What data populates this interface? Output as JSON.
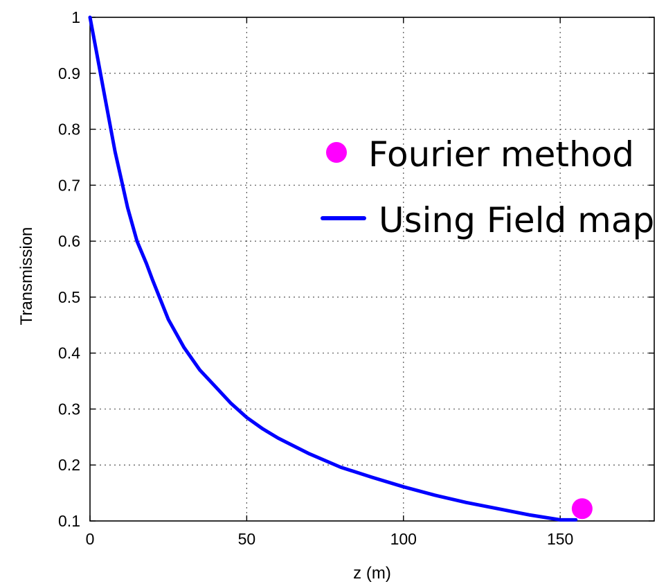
{
  "chart_data": {
    "type": "line",
    "title": "",
    "xlabel": "z (m)",
    "ylabel": "Transmission",
    "xlim": [
      0,
      180
    ],
    "ylim": [
      0.1,
      1
    ],
    "xticks": [
      0,
      50,
      100,
      150
    ],
    "xtick_labels": [
      "0",
      "50",
      "100",
      "150"
    ],
    "yticks": [
      0.1,
      0.2,
      0.3,
      0.4,
      0.5,
      0.6,
      0.7,
      0.8,
      0.9,
      1
    ],
    "ytick_labels": [
      "0.1",
      "0.2",
      "0.3",
      "0.4",
      "0.5",
      "0.6",
      "0.7",
      "0.8",
      "0.9",
      "1"
    ],
    "grid": true,
    "legend_position": "top-right",
    "series": [
      {
        "name": "Using Field map",
        "kind": "line",
        "color": "#0000ff",
        "x": [
          0,
          2,
          5,
          8,
          10,
          12,
          15,
          18,
          20,
          25,
          30,
          35,
          40,
          45,
          50,
          55,
          60,
          70,
          80,
          90,
          100,
          110,
          120,
          130,
          140,
          150,
          155
        ],
        "y": [
          1.0,
          0.94,
          0.85,
          0.76,
          0.71,
          0.66,
          0.6,
          0.56,
          0.53,
          0.46,
          0.41,
          0.37,
          0.34,
          0.31,
          0.285,
          0.265,
          0.248,
          0.22,
          0.196,
          0.178,
          0.161,
          0.146,
          0.133,
          0.122,
          0.111,
          0.102,
          0.102
        ]
      },
      {
        "name": "Fourier method",
        "kind": "point",
        "color": "#ff00ff",
        "x": [
          157
        ],
        "y": [
          0.122
        ]
      }
    ]
  }
}
